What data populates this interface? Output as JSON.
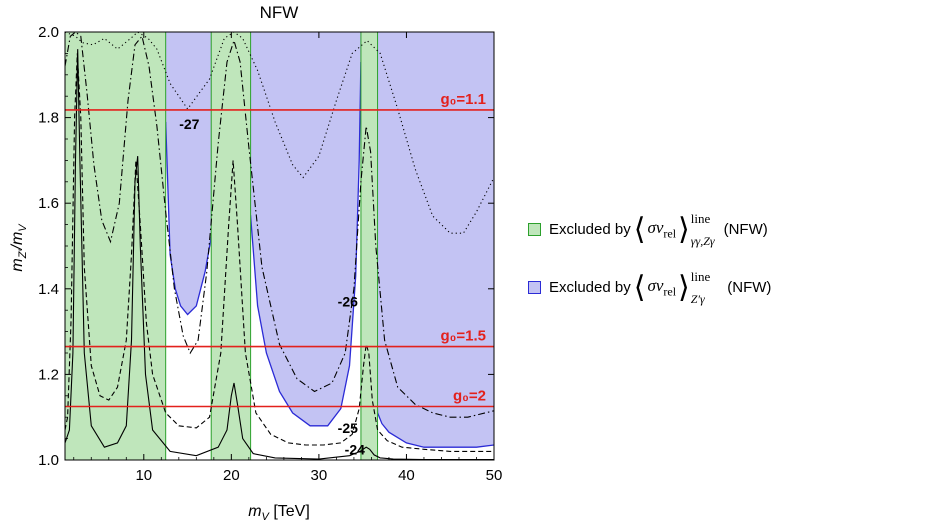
{
  "colors": {
    "green_fill": "#bfe6bb",
    "green_edge": "#2ca02c",
    "blue_fill": "#c3c3f3",
    "blue_edge": "#2b2bd6",
    "red_line": "#e3211c"
  },
  "chart_data": {
    "type": "line",
    "title": "NFW",
    "xlabel": "m_V [TeV]",
    "xlabel_main": "m",
    "xlabel_sub": "V",
    "xlabel_unit": " [TeV]",
    "ylabel": "m_Z'/m_V",
    "xlim": [
      1,
      50
    ],
    "ylim": [
      1.0,
      2.0
    ],
    "xticks": [
      10,
      20,
      30,
      40,
      50
    ],
    "xtick_labels": [
      "10",
      "20",
      "30",
      "40",
      "50"
    ],
    "yticks": [
      1.0,
      1.2,
      1.4,
      1.6,
      1.8,
      2.0
    ],
    "ytick_labels": [
      "1.0",
      "1.2",
      "1.4",
      "1.6",
      "1.8",
      "2.0"
    ],
    "green_excluded_bands": [
      {
        "x_from": 1.0,
        "x_to": 12.5
      },
      {
        "x_from": 17.7,
        "x_to": 22.2
      },
      {
        "x_from": 34.8,
        "x_to": 36.7
      }
    ],
    "blue_excluded_boundary": {
      "x": [
        12.5,
        13.0,
        13.6,
        14.2,
        15.0,
        16.0,
        17.0,
        17.7,
        22.2,
        23.0,
        24.0,
        25.5,
        27.0,
        29.0,
        31.0,
        32.5,
        33.5,
        34.2,
        34.6,
        34.8,
        36.7,
        37.2,
        38.0,
        40.0,
        42.0,
        44.0,
        46.0,
        48.0,
        50.0
      ],
      "y": [
        1.79,
        1.48,
        1.4,
        1.36,
        1.34,
        1.36,
        1.44,
        1.52,
        1.57,
        1.36,
        1.25,
        1.16,
        1.11,
        1.08,
        1.08,
        1.12,
        1.22,
        1.43,
        1.7,
        1.93,
        1.11,
        1.085,
        1.065,
        1.04,
        1.03,
        1.03,
        1.03,
        1.03,
        1.035
      ]
    },
    "contour_labels": [
      {
        "text": "-27",
        "x": 15.2,
        "y": 1.785
      },
      {
        "text": "-26",
        "x": 33.3,
        "y": 1.37
      },
      {
        "text": "-25",
        "x": 33.3,
        "y": 1.075
      },
      {
        "text": "-24",
        "x": 34.1,
        "y": 1.025
      }
    ],
    "g0_lines": [
      {
        "label": "g₀=1.1",
        "y": 1.818
      },
      {
        "label": "g₀=1.5",
        "y": 1.265
      },
      {
        "label": "g₀=2",
        "y": 1.125
      }
    ],
    "series": [
      {
        "name": "-27",
        "style": "dotted",
        "x": [
          1,
          2.2,
          3.0,
          4.2,
          5.5,
          7.0,
          8.5,
          9.3,
          10.5,
          11.5,
          13.0,
          15.0,
          17.5,
          19.2,
          20.3,
          21.3,
          23.0,
          25.0,
          27.0,
          28.2,
          30.0,
          32.0,
          33.8,
          35.5,
          37.0,
          39.0,
          41.0,
          43.0,
          45.0,
          46.5,
          48.0,
          50.0
        ],
        "y": [
          2.0,
          1.99,
          1.975,
          1.97,
          1.985,
          1.96,
          1.985,
          2.0,
          1.985,
          1.96,
          1.88,
          1.82,
          1.89,
          1.985,
          2.0,
          1.985,
          1.91,
          1.79,
          1.69,
          1.66,
          1.71,
          1.84,
          1.95,
          1.98,
          1.95,
          1.82,
          1.68,
          1.57,
          1.53,
          1.53,
          1.58,
          1.66
        ]
      },
      {
        "name": "-26",
        "style": "dashdot",
        "x": [
          1,
          1.6,
          2.2,
          2.8,
          3.5,
          4.3,
          5.2,
          6.2,
          7.2,
          8.2,
          9.0,
          9.8,
          10.6,
          11.5,
          12.5,
          13.5,
          14.5,
          15.3,
          16.2,
          17.2,
          18.5,
          19.5,
          20.3,
          21.0,
          22.0,
          23.5,
          25.5,
          27.5,
          29.5,
          31.5,
          33.0,
          34.0,
          34.8,
          35.4,
          35.9,
          36.5,
          37.5,
          39.0,
          41.0,
          43.0,
          45.0,
          47.0,
          49.0,
          50.0
        ],
        "y": [
          1.92,
          1.99,
          2.0,
          1.99,
          1.86,
          1.69,
          1.56,
          1.51,
          1.6,
          1.84,
          1.97,
          1.99,
          1.92,
          1.78,
          1.58,
          1.4,
          1.29,
          1.25,
          1.28,
          1.44,
          1.74,
          1.93,
          1.98,
          1.93,
          1.73,
          1.45,
          1.27,
          1.19,
          1.16,
          1.18,
          1.25,
          1.4,
          1.65,
          1.78,
          1.72,
          1.5,
          1.28,
          1.17,
          1.13,
          1.11,
          1.1,
          1.1,
          1.11,
          1.115
        ]
      },
      {
        "name": "-25",
        "style": "dashed",
        "x": [
          1,
          1.3,
          1.7,
          2.1,
          2.4,
          2.8,
          3.2,
          4.0,
          5.0,
          6.0,
          7.0,
          8.0,
          8.6,
          9.1,
          9.6,
          10.3,
          11.0,
          12.5,
          14.0,
          16.0,
          17.5,
          18.8,
          19.7,
          20.2,
          20.7,
          21.6,
          22.8,
          24.5,
          26.5,
          28.5,
          30.5,
          32.5,
          33.8,
          34.6,
          35.1,
          35.4,
          35.7,
          36.1,
          36.7,
          37.8,
          39.5,
          42.0,
          45.0,
          48.0,
          50.0
        ],
        "y": [
          1.07,
          1.1,
          1.33,
          1.8,
          1.95,
          1.8,
          1.45,
          1.22,
          1.15,
          1.14,
          1.17,
          1.28,
          1.48,
          1.7,
          1.55,
          1.32,
          1.2,
          1.11,
          1.08,
          1.075,
          1.1,
          1.25,
          1.55,
          1.7,
          1.55,
          1.25,
          1.11,
          1.06,
          1.04,
          1.035,
          1.035,
          1.04,
          1.06,
          1.12,
          1.22,
          1.27,
          1.25,
          1.14,
          1.07,
          1.045,
          1.03,
          1.025,
          1.02,
          1.02,
          1.02
        ]
      },
      {
        "name": "-24",
        "style": "solid",
        "x": [
          1,
          1.5,
          1.9,
          2.2,
          2.45,
          2.7,
          3.2,
          4.0,
          5.5,
          7.0,
          8.0,
          8.6,
          9.0,
          9.3,
          9.6,
          10.2,
          11.0,
          13.0,
          16.0,
          18.5,
          19.5,
          20.0,
          20.3,
          20.7,
          21.3,
          22.5,
          25.0,
          30.0,
          33.5,
          34.7,
          35.4,
          35.8,
          36.3,
          37.0,
          38.5,
          42.0,
          46.0,
          50.0
        ],
        "y": [
          1.04,
          1.07,
          1.25,
          1.7,
          1.96,
          1.7,
          1.25,
          1.08,
          1.03,
          1.04,
          1.08,
          1.28,
          1.65,
          1.71,
          1.5,
          1.2,
          1.07,
          1.02,
          1.01,
          1.03,
          1.07,
          1.15,
          1.18,
          1.13,
          1.05,
          1.015,
          1.005,
          1.002,
          1.01,
          1.02,
          1.03,
          1.025,
          1.012,
          1.005,
          1.002,
          1.001,
          1.001,
          1.001
        ]
      }
    ]
  },
  "legend": {
    "items": [
      {
        "prefix": "Excluded by",
        "sv": "σv",
        "sv_sub": "rel",
        "sup": "line",
        "sub": "γγ,Zγ",
        "suffix": "(NFW)"
      },
      {
        "prefix": "Excluded by",
        "sv": "σv",
        "sv_sub": "rel",
        "sup": "line",
        "sub": "Z′γ",
        "suffix": "(NFW)"
      }
    ]
  }
}
